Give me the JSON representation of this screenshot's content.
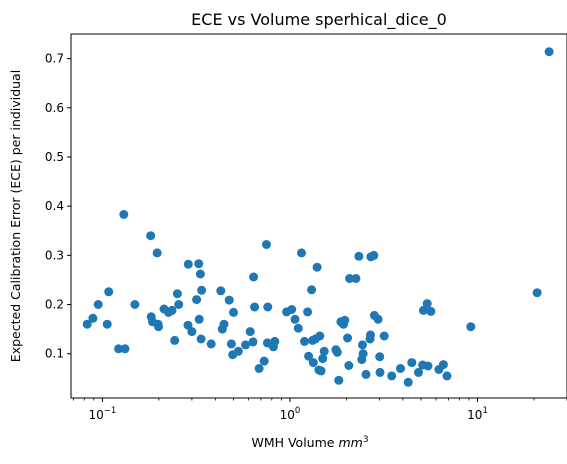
{
  "chart_data": {
    "type": "scatter",
    "title": "ECE vs Volume sperhical_dice_0",
    "xlabel": "WMH Volume",
    "xlabel_unit": "mm",
    "xlabel_unit_exp": "3",
    "ylabel": "Expected Calibration Error (ECE) per individual",
    "x_scale": "log",
    "xlim": [
      0.068,
      30
    ],
    "ylim": [
      0.01,
      0.75
    ],
    "x_ticks": [
      {
        "value": 0.1,
        "base": "10",
        "exp": "−1"
      },
      {
        "value": 1,
        "base": "10",
        "exp": "0"
      },
      {
        "value": 10,
        "base": "10",
        "exp": "1"
      }
    ],
    "y_ticks": [
      {
        "value": 0.1,
        "label": "0.1"
      },
      {
        "value": 0.2,
        "label": "0.2"
      },
      {
        "value": 0.3,
        "label": "0.3"
      },
      {
        "value": 0.4,
        "label": "0.4"
      },
      {
        "value": 0.5,
        "label": "0.5"
      },
      {
        "value": 0.6,
        "label": "0.6"
      },
      {
        "value": 0.7,
        "label": "0.7"
      }
    ],
    "grid": false,
    "color": "#1f77b4",
    "series": [
      {
        "points": [
          [
            0.083,
            0.16
          ],
          [
            0.089,
            0.172
          ],
          [
            0.095,
            0.2
          ],
          [
            0.106,
            0.16
          ],
          [
            0.108,
            0.226
          ],
          [
            0.122,
            0.11
          ],
          [
            0.13,
            0.383
          ],
          [
            0.132,
            0.11
          ],
          [
            0.149,
            0.2
          ],
          [
            0.181,
            0.34
          ],
          [
            0.182,
            0.175
          ],
          [
            0.185,
            0.165
          ],
          [
            0.196,
            0.305
          ],
          [
            0.199,
            0.155
          ],
          [
            0.198,
            0.16
          ],
          [
            0.213,
            0.191
          ],
          [
            0.225,
            0.184
          ],
          [
            0.235,
            0.188
          ],
          [
            0.243,
            0.127
          ],
          [
            0.255,
            0.2
          ],
          [
            0.251,
            0.222
          ],
          [
            0.287,
            0.282
          ],
          [
            0.286,
            0.158
          ],
          [
            0.3,
            0.145
          ],
          [
            0.318,
            0.21
          ],
          [
            0.326,
            0.283
          ],
          [
            0.328,
            0.17
          ],
          [
            0.333,
            0.262
          ],
          [
            0.336,
            0.13
          ],
          [
            0.338,
            0.229
          ],
          [
            0.38,
            0.12
          ],
          [
            0.428,
            0.228
          ],
          [
            0.436,
            0.15
          ],
          [
            0.445,
            0.16
          ],
          [
            0.474,
            0.209
          ],
          [
            0.487,
            0.12
          ],
          [
            0.495,
            0.098
          ],
          [
            0.5,
            0.184
          ],
          [
            0.53,
            0.105
          ],
          [
            0.579,
            0.118
          ],
          [
            0.614,
            0.145
          ],
          [
            0.635,
            0.124
          ],
          [
            0.64,
            0.256
          ],
          [
            0.648,
            0.195
          ],
          [
            0.685,
            0.07
          ],
          [
            0.729,
            0.085
          ],
          [
            0.75,
            0.322
          ],
          [
            0.762,
            0.195
          ],
          [
            0.758,
            0.122
          ],
          [
            0.816,
            0.114
          ],
          [
            0.83,
            0.125
          ],
          [
            0.96,
            0.185
          ],
          [
            1.022,
            0.19
          ],
          [
            1.064,
            0.17
          ],
          [
            1.108,
            0.152
          ],
          [
            1.152,
            0.305
          ],
          [
            1.196,
            0.125
          ],
          [
            1.242,
            0.185
          ],
          [
            1.257,
            0.095
          ],
          [
            1.305,
            0.23
          ],
          [
            1.321,
            0.127
          ],
          [
            1.332,
            0.082
          ],
          [
            1.367,
            0.13
          ],
          [
            1.396,
            0.276
          ],
          [
            1.427,
            0.067
          ],
          [
            1.443,
            0.136
          ],
          [
            1.466,
            0.065
          ],
          [
            1.495,
            0.09
          ],
          [
            1.523,
            0.105
          ],
          [
            1.757,
            0.108
          ],
          [
            1.789,
            0.103
          ],
          [
            1.822,
            0.046
          ],
          [
            1.87,
            0.165
          ],
          [
            1.93,
            0.16
          ],
          [
            1.961,
            0.168
          ],
          [
            2.03,
            0.132
          ],
          [
            2.058,
            0.076
          ],
          [
            2.08,
            0.253
          ],
          [
            2.248,
            0.253
          ],
          [
            2.33,
            0.298
          ],
          [
            2.416,
            0.088
          ],
          [
            2.437,
            0.118
          ],
          [
            2.454,
            0.1
          ],
          [
            2.544,
            0.058
          ],
          [
            2.67,
            0.13
          ],
          [
            2.688,
            0.138
          ],
          [
            2.701,
            0.297
          ],
          [
            2.798,
            0.3
          ],
          [
            2.819,
            0.178
          ],
          [
            2.952,
            0.17
          ],
          [
            3.011,
            0.094
          ],
          [
            3.022,
            0.062
          ],
          [
            3.179,
            0.136
          ],
          [
            3.489,
            0.055
          ],
          [
            3.885,
            0.07
          ],
          [
            4.271,
            0.042
          ],
          [
            4.461,
            0.082
          ],
          [
            4.843,
            0.062
          ],
          [
            5.098,
            0.077
          ],
          [
            5.148,
            0.188
          ],
          [
            5.39,
            0.202
          ],
          [
            5.442,
            0.075
          ],
          [
            5.639,
            0.186
          ],
          [
            6.225,
            0.068
          ],
          [
            6.575,
            0.078
          ],
          [
            6.874,
            0.055
          ],
          [
            9.203,
            0.155
          ],
          [
            20.77,
            0.224
          ],
          [
            24.07,
            0.714
          ]
        ]
      }
    ]
  }
}
